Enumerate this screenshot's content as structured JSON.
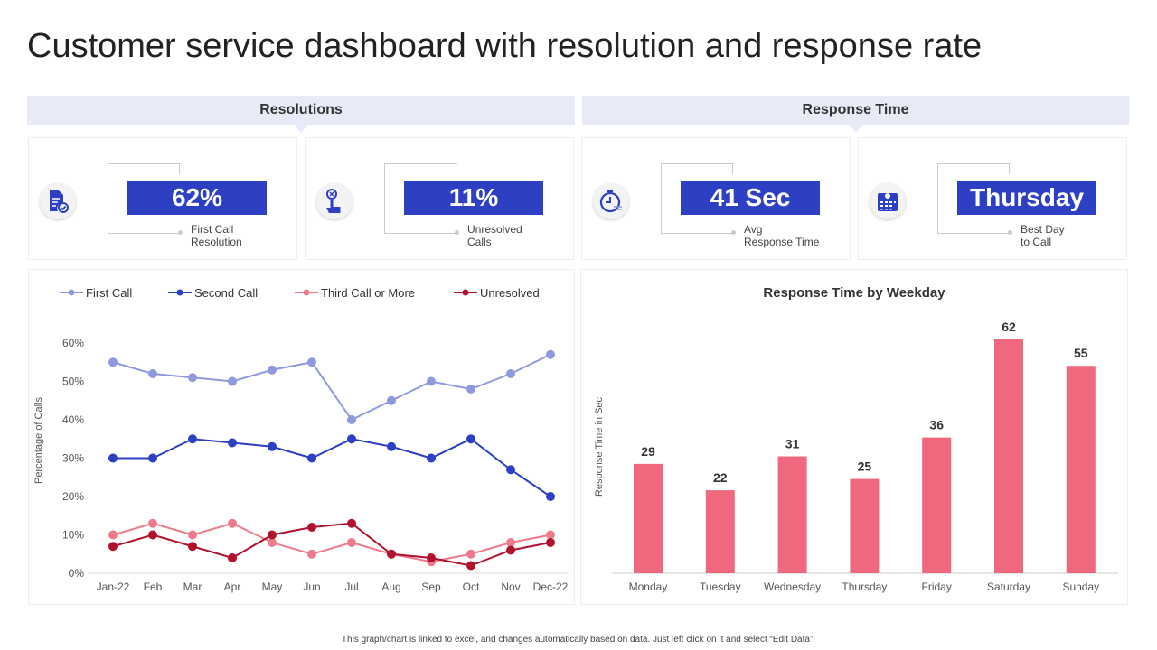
{
  "title": "Customer service dashboard with resolution and response rate",
  "sections": {
    "resolutions": "Resolutions",
    "response_time": "Response Time"
  },
  "kpis": [
    {
      "value": "62%",
      "label1": "First Call",
      "label2": "Resolution",
      "icon": "document-check-icon"
    },
    {
      "value": "11%",
      "label1": "Unresolved",
      "label2": "Calls",
      "icon": "hand-tap-icon"
    },
    {
      "value": "41 Sec",
      "label1": "Avg",
      "label2": "Response Time",
      "icon": "stopwatch-icon"
    },
    {
      "value": "Thursday",
      "label1": "Best Day",
      "label2": "to Call",
      "icon": "calendar-icon"
    }
  ],
  "footer": "This graph/chart is linked to excel, and changes automatically based on data. Just left click on it and select “Edit Data”.",
  "colors": {
    "accent": "#2d3fc2",
    "first": "#8e99de",
    "second": "#2d3fc2",
    "third": "#ee7b8c",
    "unresolved": "#b0122e",
    "bar": "#f0687e"
  },
  "chart_data": [
    {
      "type": "line",
      "title": "",
      "ylabel": "Percentage of Calls",
      "ylim": [
        0,
        60
      ],
      "yticks": [
        "0%",
        "10%",
        "20%",
        "30%",
        "40%",
        "50%",
        "60%"
      ],
      "legend": "top",
      "categories": [
        "Jan-22",
        "Feb",
        "Mar",
        "Apr",
        "May",
        "Jun",
        "Jul",
        "Aug",
        "Sep",
        "Oct",
        "Nov",
        "Dec-22"
      ],
      "series": [
        {
          "name": "First Call",
          "values": [
            55,
            52,
            51,
            50,
            53,
            55,
            40,
            45,
            50,
            48,
            52,
            57
          ]
        },
        {
          "name": "Second Call",
          "values": [
            30,
            30,
            35,
            34,
            33,
            30,
            35,
            33,
            30,
            35,
            27,
            20
          ]
        },
        {
          "name": "Third Call or More",
          "values": [
            10,
            13,
            10,
            13,
            8,
            5,
            8,
            5,
            3,
            5,
            8,
            10
          ]
        },
        {
          "name": "Unresolved",
          "values": [
            7,
            10,
            7,
            4,
            10,
            12,
            13,
            5,
            4,
            2,
            6,
            8
          ]
        }
      ]
    },
    {
      "type": "bar",
      "title": "Response Time by Weekday",
      "ylabel": "Response Time in Sec",
      "categories": [
        "Monday",
        "Tuesday",
        "Wednesday",
        "Thursday",
        "Friday",
        "Saturday",
        "Sunday"
      ],
      "values": [
        29,
        22,
        31,
        25,
        36,
        62,
        55
      ]
    }
  ]
}
